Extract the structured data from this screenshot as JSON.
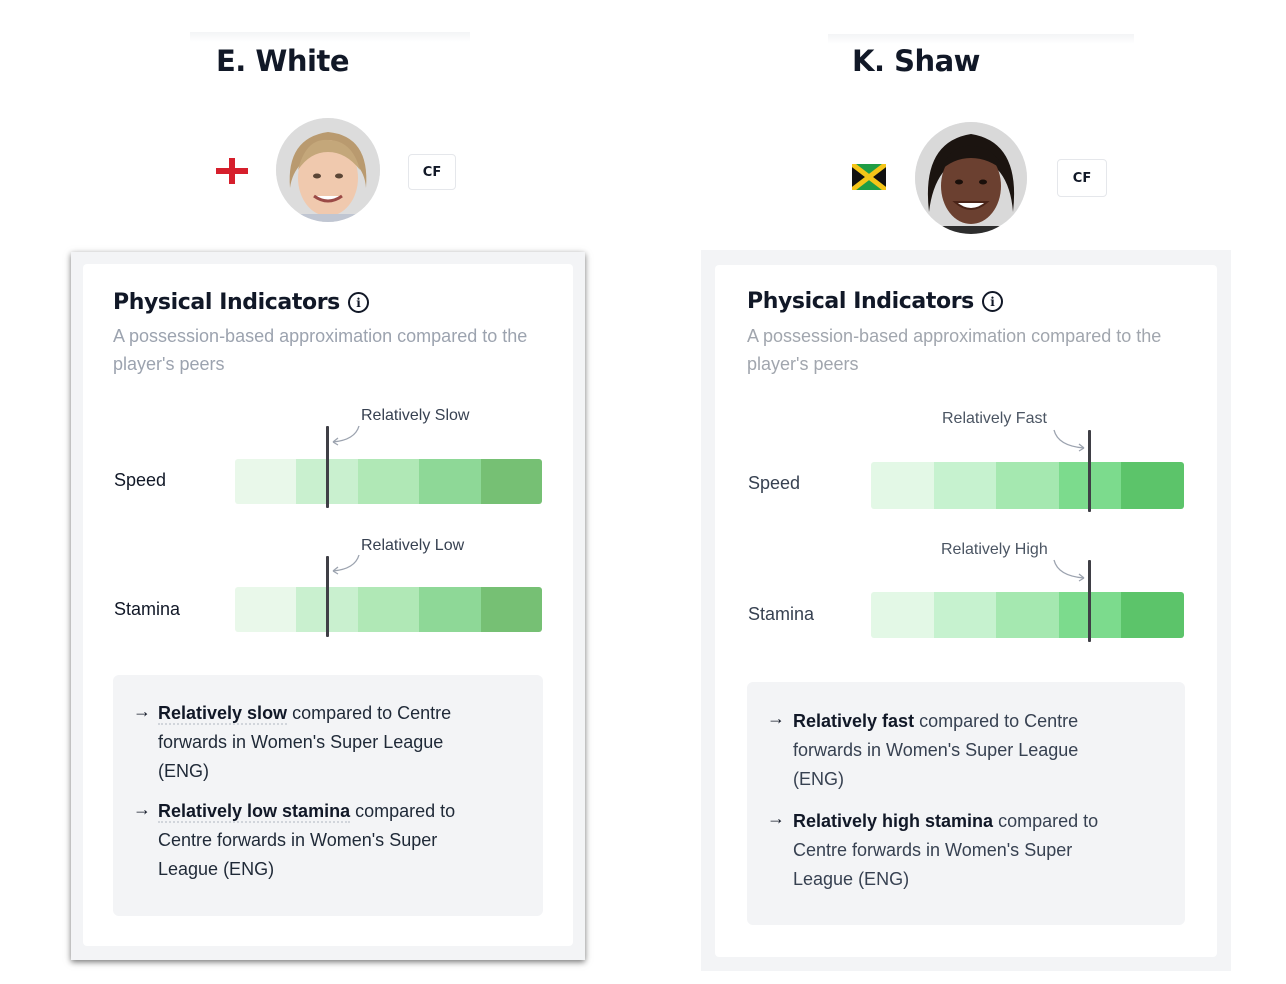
{
  "players": [
    {
      "name": "E. White",
      "flag": "england-flag-icon",
      "position": "CF",
      "panel": {
        "title": "Physical Indicators",
        "subtitle": "A possession-based approximation compared to the player's peers",
        "metrics": [
          {
            "label": "Speed",
            "marker_label": "Relatively Slow",
            "marker_value": 0.3
          },
          {
            "label": "Stamina",
            "marker_label": "Relatively Low",
            "marker_value": 0.3
          }
        ],
        "summary": [
          {
            "strong": "Relatively slow",
            "rest": "compared to Centre forwards in Women's Super League (ENG)"
          },
          {
            "strong": "Relatively low stamina",
            "rest": "compared to Centre forwards in Women's Super League (ENG)"
          }
        ]
      }
    },
    {
      "name": "K. Shaw",
      "flag": "jamaica-flag-icon",
      "position": "CF",
      "panel": {
        "title": "Physical Indicators",
        "subtitle": "A possession-based approximation compared to the player's peers",
        "metrics": [
          {
            "label": "Speed",
            "marker_label": "Relatively Fast",
            "marker_value": 0.7
          },
          {
            "label": "Stamina",
            "marker_label": "Relatively High",
            "marker_value": 0.7
          }
        ],
        "summary": [
          {
            "strong": "Relatively fast",
            "rest": "compared to Centre forwards in Women's Super League (ENG)"
          },
          {
            "strong": "Relatively high stamina",
            "rest": "compared to Centre forwards in Women's Super League (ENG)"
          }
        ]
      }
    }
  ],
  "colors": {
    "bar_segments": [
      "#e9f8ea",
      "#c9f0cf",
      "#b0e8b6",
      "#8ed897",
      "#76c074"
    ],
    "bar_segments_right": [
      "#e3f8e6",
      "#c6f2cf",
      "#a5e8b0",
      "#7cdb8d",
      "#5cc46a"
    ],
    "marker": "#3f3f46"
  }
}
